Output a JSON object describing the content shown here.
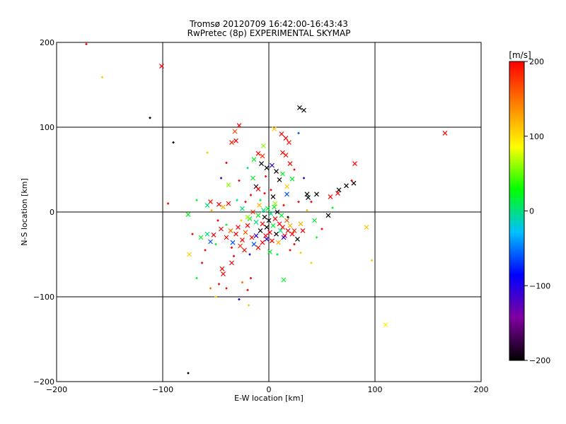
{
  "chart_data": {
    "type": "scatter",
    "title": "Tromsø 20120709 16:42:00-16:43:43",
    "subtitle": "RwPretec (8p) EXPERIMENTAL SKYMAP",
    "xlabel": "E-W location [km]",
    "ylabel": "N-S location [km]",
    "xlim": [
      -200,
      200
    ],
    "ylim": [
      -200,
      200
    ],
    "x_ticks": [
      -200,
      -100,
      0,
      100,
      200
    ],
    "y_ticks": [
      -200,
      -100,
      0,
      100,
      200
    ],
    "grid": true,
    "colorbar": {
      "label": "[m/s]",
      "range": [
        -200,
        200
      ],
      "ticks": [
        -200,
        -100,
        0,
        100,
        200
      ],
      "colors": [
        "#000000",
        "#8000a0",
        "#0000ff",
        "#00c0ff",
        "#00ff00",
        "#ffff00",
        "#ff8000",
        "#ff0000"
      ]
    },
    "points": [
      {
        "x": -172,
        "y": 198,
        "v": 200,
        "m": "d"
      },
      {
        "x": -101,
        "y": 172,
        "v": 200,
        "m": "x"
      },
      {
        "x": -157,
        "y": 159,
        "v": 110,
        "m": "d"
      },
      {
        "x": -112,
        "y": 111,
        "v": -200,
        "m": "d"
      },
      {
        "x": 166,
        "y": 93,
        "v": 200,
        "m": "x"
      },
      {
        "x": 29,
        "y": 123,
        "v": -200,
        "m": "x"
      },
      {
        "x": 33,
        "y": 120,
        "v": -200,
        "m": "x"
      },
      {
        "x": -28,
        "y": 102,
        "v": 200,
        "m": "x"
      },
      {
        "x": -32,
        "y": 95,
        "v": 170,
        "m": "x"
      },
      {
        "x": -35,
        "y": 82,
        "v": 190,
        "m": "x"
      },
      {
        "x": -31,
        "y": 84,
        "v": 200,
        "m": "x"
      },
      {
        "x": 5,
        "y": 98,
        "v": 110,
        "m": "x"
      },
      {
        "x": 12,
        "y": 92,
        "v": 200,
        "m": "x"
      },
      {
        "x": 16,
        "y": 87,
        "v": 200,
        "m": "x"
      },
      {
        "x": 19,
        "y": 82,
        "v": 190,
        "m": "x"
      },
      {
        "x": 28,
        "y": 93,
        "v": -60,
        "m": "d"
      },
      {
        "x": -90,
        "y": 82,
        "v": -200,
        "m": "d"
      },
      {
        "x": -58,
        "y": 70,
        "v": 110,
        "m": "d"
      },
      {
        "x": -5,
        "y": 78,
        "v": 60,
        "m": "x"
      },
      {
        "x": -10,
        "y": 69,
        "v": 200,
        "m": "x"
      },
      {
        "x": -6,
        "y": 66,
        "v": 180,
        "m": "x"
      },
      {
        "x": -14,
        "y": 62,
        "v": 20,
        "m": "x"
      },
      {
        "x": 13,
        "y": 70,
        "v": 200,
        "m": "x"
      },
      {
        "x": 16,
        "y": 67,
        "v": 190,
        "m": "x"
      },
      {
        "x": 20,
        "y": 57,
        "v": 200,
        "m": "x"
      },
      {
        "x": -7,
        "y": 57,
        "v": -200,
        "m": "x"
      },
      {
        "x": -2,
        "y": 52,
        "v": -200,
        "m": "x"
      },
      {
        "x": 3,
        "y": 55,
        "v": -100,
        "m": "x"
      },
      {
        "x": 7,
        "y": 48,
        "v": -200,
        "m": "x"
      },
      {
        "x": 13,
        "y": 45,
        "v": 20,
        "m": "x"
      },
      {
        "x": 81,
        "y": 57,
        "v": 200,
        "m": "x"
      },
      {
        "x": -40,
        "y": 58,
        "v": 200,
        "m": "d"
      },
      {
        "x": -28,
        "y": 37,
        "v": 200,
        "m": "d"
      },
      {
        "x": -38,
        "y": 32,
        "v": 60,
        "m": "x"
      },
      {
        "x": -15,
        "y": 40,
        "v": 20,
        "m": "x"
      },
      {
        "x": -12,
        "y": 30,
        "v": -200,
        "m": "x"
      },
      {
        "x": -10,
        "y": 27,
        "v": 200,
        "m": "x"
      },
      {
        "x": -4,
        "y": 22,
        "v": 200,
        "m": "d"
      },
      {
        "x": 4,
        "y": 18,
        "v": -200,
        "m": "x"
      },
      {
        "x": 10,
        "y": 38,
        "v": -200,
        "m": "x"
      },
      {
        "x": 17,
        "y": 30,
        "v": 110,
        "m": "x"
      },
      {
        "x": 22,
        "y": 39,
        "v": 20,
        "m": "x"
      },
      {
        "x": 17,
        "y": 21,
        "v": -60,
        "m": "x"
      },
      {
        "x": 36,
        "y": 21,
        "v": -200,
        "m": "x"
      },
      {
        "x": 37,
        "y": 17,
        "v": -200,
        "m": "x"
      },
      {
        "x": 45,
        "y": 21,
        "v": -200,
        "m": "x"
      },
      {
        "x": 58,
        "y": 18,
        "v": 200,
        "m": "x"
      },
      {
        "x": 65,
        "y": 22,
        "v": 200,
        "m": "x"
      },
      {
        "x": 66,
        "y": 26,
        "v": -200,
        "m": "x"
      },
      {
        "x": 73,
        "y": 31,
        "v": -200,
        "m": "x"
      },
      {
        "x": 80,
        "y": 34,
        "v": -200,
        "m": "x"
      },
      {
        "x": 78,
        "y": 37,
        "v": 200,
        "m": "d"
      },
      {
        "x": -55,
        "y": 12,
        "v": 200,
        "m": "x"
      },
      {
        "x": -58,
        "y": 8,
        "v": 0,
        "m": "x"
      },
      {
        "x": -38,
        "y": 10,
        "v": 200,
        "m": "x"
      },
      {
        "x": -43,
        "y": 6,
        "v": 120,
        "m": "x"
      },
      {
        "x": -47,
        "y": 9,
        "v": 200,
        "m": "x"
      },
      {
        "x": -25,
        "y": 4,
        "v": 0,
        "m": "x"
      },
      {
        "x": -95,
        "y": 10,
        "v": 200,
        "m": "d"
      },
      {
        "x": -76,
        "y": -3,
        "v": 20,
        "m": "x"
      },
      {
        "x": -64,
        "y": -30,
        "v": 20,
        "m": "x"
      },
      {
        "x": -58,
        "y": -26,
        "v": 0,
        "m": "x"
      },
      {
        "x": -55,
        "y": -35,
        "v": -60,
        "m": "x"
      },
      {
        "x": -52,
        "y": -27,
        "v": 200,
        "m": "x"
      },
      {
        "x": -45,
        "y": -20,
        "v": 200,
        "m": "x"
      },
      {
        "x": -40,
        "y": -30,
        "v": 200,
        "m": "x"
      },
      {
        "x": -36,
        "y": -22,
        "v": 150,
        "m": "x"
      },
      {
        "x": -34,
        "y": -36,
        "v": -60,
        "m": "x"
      },
      {
        "x": -31,
        "y": -26,
        "v": 200,
        "m": "x"
      },
      {
        "x": -29,
        "y": -18,
        "v": 200,
        "m": "x"
      },
      {
        "x": -27,
        "y": -40,
        "v": 180,
        "m": "x"
      },
      {
        "x": -25,
        "y": -33,
        "v": 200,
        "m": "x"
      },
      {
        "x": -22,
        "y": -24,
        "v": 160,
        "m": "x"
      },
      {
        "x": -20,
        "y": -16,
        "v": 200,
        "m": "x"
      },
      {
        "x": -18,
        "y": -8,
        "v": 20,
        "m": "x"
      },
      {
        "x": -16,
        "y": -30,
        "v": 200,
        "m": "x"
      },
      {
        "x": -14,
        "y": -38,
        "v": -60,
        "m": "x"
      },
      {
        "x": -12,
        "y": -12,
        "v": 0,
        "m": "x"
      },
      {
        "x": -10,
        "y": -4,
        "v": 20,
        "m": "x"
      },
      {
        "x": -8,
        "y": -22,
        "v": -200,
        "m": "x"
      },
      {
        "x": -6,
        "y": -14,
        "v": 200,
        "m": "x"
      },
      {
        "x": -5,
        "y": 2,
        "v": 0,
        "m": "x"
      },
      {
        "x": -4,
        "y": -6,
        "v": -200,
        "m": "x"
      },
      {
        "x": -3,
        "y": -28,
        "v": 200,
        "m": "x"
      },
      {
        "x": -2,
        "y": -18,
        "v": -200,
        "m": "x"
      },
      {
        "x": -1,
        "y": 4,
        "v": 20,
        "m": "x"
      },
      {
        "x": 0,
        "y": -10,
        "v": -200,
        "m": "x"
      },
      {
        "x": 1,
        "y": -24,
        "v": 200,
        "m": "x"
      },
      {
        "x": 2,
        "y": -2,
        "v": 0,
        "m": "x"
      },
      {
        "x": 3,
        "y": -34,
        "v": 200,
        "m": "x"
      },
      {
        "x": 4,
        "y": -16,
        "v": 20,
        "m": "x"
      },
      {
        "x": 5,
        "y": 6,
        "v": 20,
        "m": "x"
      },
      {
        "x": 6,
        "y": -8,
        "v": 200,
        "m": "x"
      },
      {
        "x": 7,
        "y": -26,
        "v": -200,
        "m": "x"
      },
      {
        "x": 8,
        "y": 0,
        "v": -200,
        "m": "x"
      },
      {
        "x": 10,
        "y": -14,
        "v": 200,
        "m": "x"
      },
      {
        "x": 11,
        "y": -22,
        "v": 0,
        "m": "x"
      },
      {
        "x": 12,
        "y": -4,
        "v": 20,
        "m": "x"
      },
      {
        "x": 13,
        "y": -18,
        "v": 200,
        "m": "x"
      },
      {
        "x": 15,
        "y": -28,
        "v": 200,
        "m": "x"
      },
      {
        "x": 17,
        "y": -10,
        "v": 160,
        "m": "x"
      },
      {
        "x": 18,
        "y": -22,
        "v": 200,
        "m": "x"
      },
      {
        "x": 20,
        "y": -16,
        "v": 120,
        "m": "x"
      },
      {
        "x": 22,
        "y": -26,
        "v": 200,
        "m": "x"
      },
      {
        "x": 24,
        "y": -22,
        "v": 180,
        "m": "x"
      },
      {
        "x": 27,
        "y": -32,
        "v": -200,
        "m": "x"
      },
      {
        "x": 30,
        "y": -14,
        "v": 120,
        "m": "x"
      },
      {
        "x": 32,
        "y": -22,
        "v": 200,
        "m": "x"
      },
      {
        "x": 43,
        "y": -10,
        "v": 20,
        "m": "x"
      },
      {
        "x": 56,
        "y": -4,
        "v": -200,
        "m": "x"
      },
      {
        "x": 92,
        "y": -18,
        "v": 110,
        "m": "x"
      },
      {
        "x": -12,
        "y": -28,
        "v": -100,
        "m": "x"
      },
      {
        "x": -2,
        "y": -32,
        "v": -100,
        "m": "x"
      },
      {
        "x": 14,
        "y": -30,
        "v": -100,
        "m": "x"
      },
      {
        "x": -20,
        "y": -6,
        "v": 60,
        "m": "x"
      },
      {
        "x": -9,
        "y": 8,
        "v": 120,
        "m": "x"
      },
      {
        "x": 6,
        "y": 10,
        "v": 60,
        "m": "x"
      },
      {
        "x": -15,
        "y": 0,
        "v": 180,
        "m": "x"
      },
      {
        "x": 9,
        "y": -36,
        "v": 120,
        "m": "x"
      },
      {
        "x": -23,
        "y": -45,
        "v": 200,
        "m": "x"
      },
      {
        "x": -10,
        "y": -42,
        "v": 200,
        "m": "x"
      },
      {
        "x": 1,
        "y": -47,
        "v": 20,
        "m": "x"
      },
      {
        "x": -6,
        "y": -36,
        "v": 200,
        "m": "x"
      },
      {
        "x": -75,
        "y": -50,
        "v": 110,
        "m": "x"
      },
      {
        "x": -44,
        "y": -67,
        "v": 200,
        "m": "x"
      },
      {
        "x": -43,
        "y": -73,
        "v": 200,
        "m": "x"
      },
      {
        "x": -35,
        "y": -60,
        "v": 200,
        "m": "x"
      },
      {
        "x": 14,
        "y": -80,
        "v": 20,
        "m": "x"
      },
      {
        "x": 110,
        "y": -133,
        "v": 90,
        "m": "x"
      },
      {
        "x": -63,
        "y": -60,
        "v": 200,
        "m": "d"
      },
      {
        "x": -68,
        "y": -78,
        "v": 20,
        "m": "d"
      },
      {
        "x": -55,
        "y": -90,
        "v": 150,
        "m": "d"
      },
      {
        "x": -47,
        "y": -85,
        "v": 200,
        "m": "d"
      },
      {
        "x": -40,
        "y": -90,
        "v": 200,
        "m": "d"
      },
      {
        "x": -25,
        "y": -83,
        "v": 150,
        "m": "d"
      },
      {
        "x": -20,
        "y": -92,
        "v": 200,
        "m": "d"
      },
      {
        "x": -17,
        "y": -78,
        "v": 200,
        "m": "d"
      },
      {
        "x": -50,
        "y": -100,
        "v": 110,
        "m": "d"
      },
      {
        "x": -28,
        "y": -103,
        "v": -100,
        "m": "d"
      },
      {
        "x": -19,
        "y": -110,
        "v": 110,
        "m": "d"
      },
      {
        "x": 40,
        "y": -60,
        "v": 110,
        "m": "d"
      },
      {
        "x": 97,
        "y": -57,
        "v": 110,
        "m": "d"
      },
      {
        "x": -76,
        "y": -190,
        "v": -200,
        "m": "d"
      },
      {
        "x": -54,
        "y": 2,
        "v": 120,
        "m": "d"
      },
      {
        "x": -48,
        "y": -10,
        "v": 200,
        "m": "d"
      },
      {
        "x": -30,
        "y": 14,
        "v": 0,
        "m": "d"
      },
      {
        "x": -17,
        "y": 20,
        "v": 200,
        "m": "d"
      },
      {
        "x": 28,
        "y": 12,
        "v": 200,
        "m": "d"
      },
      {
        "x": 36,
        "y": 2,
        "v": 120,
        "m": "d"
      },
      {
        "x": 50,
        "y": -20,
        "v": 200,
        "m": "d"
      },
      {
        "x": 60,
        "y": 5,
        "v": 20,
        "m": "d"
      },
      {
        "x": 33,
        "y": 40,
        "v": -100,
        "m": "d"
      },
      {
        "x": 40,
        "y": 12,
        "v": 200,
        "m": "d"
      },
      {
        "x": -3,
        "y": 42,
        "v": 200,
        "m": "d"
      },
      {
        "x": 24,
        "y": 50,
        "v": 200,
        "m": "d"
      },
      {
        "x": -20,
        "y": 52,
        "v": 0,
        "m": "d"
      },
      {
        "x": -45,
        "y": 40,
        "v": -100,
        "m": "d"
      },
      {
        "x": -68,
        "y": 14,
        "v": 20,
        "m": "d"
      },
      {
        "x": -72,
        "y": -26,
        "v": 200,
        "m": "d"
      },
      {
        "x": -33,
        "y": -52,
        "v": 200,
        "m": "d"
      },
      {
        "x": -18,
        "y": -50,
        "v": -100,
        "m": "d"
      },
      {
        "x": 8,
        "y": -50,
        "v": 20,
        "m": "d"
      },
      {
        "x": 20,
        "y": -45,
        "v": 200,
        "m": "d"
      },
      {
        "x": 30,
        "y": -48,
        "v": 110,
        "m": "d"
      },
      {
        "x": -40,
        "y": -15,
        "v": 20,
        "m": "d"
      },
      {
        "x": -60,
        "y": -45,
        "v": 200,
        "m": "d"
      },
      {
        "x": 14,
        "y": 8,
        "v": 200,
        "m": "d"
      },
      {
        "x": -26,
        "y": -10,
        "v": 110,
        "m": "d"
      },
      {
        "x": 18,
        "y": -6,
        "v": -200,
        "m": "d"
      },
      {
        "x": -8,
        "y": 14,
        "v": 20,
        "m": "d"
      },
      {
        "x": 2,
        "y": 26,
        "v": 200,
        "m": "d"
      },
      {
        "x": -35,
        "y": -42,
        "v": 200,
        "m": "d"
      },
      {
        "x": 24,
        "y": -38,
        "v": 200,
        "m": "d"
      },
      {
        "x": -22,
        "y": 12,
        "v": 200,
        "m": "d"
      },
      {
        "x": -50,
        "y": -38,
        "v": 20,
        "m": "d"
      },
      {
        "x": 45,
        "y": -30,
        "v": 20,
        "m": "d"
      }
    ]
  }
}
